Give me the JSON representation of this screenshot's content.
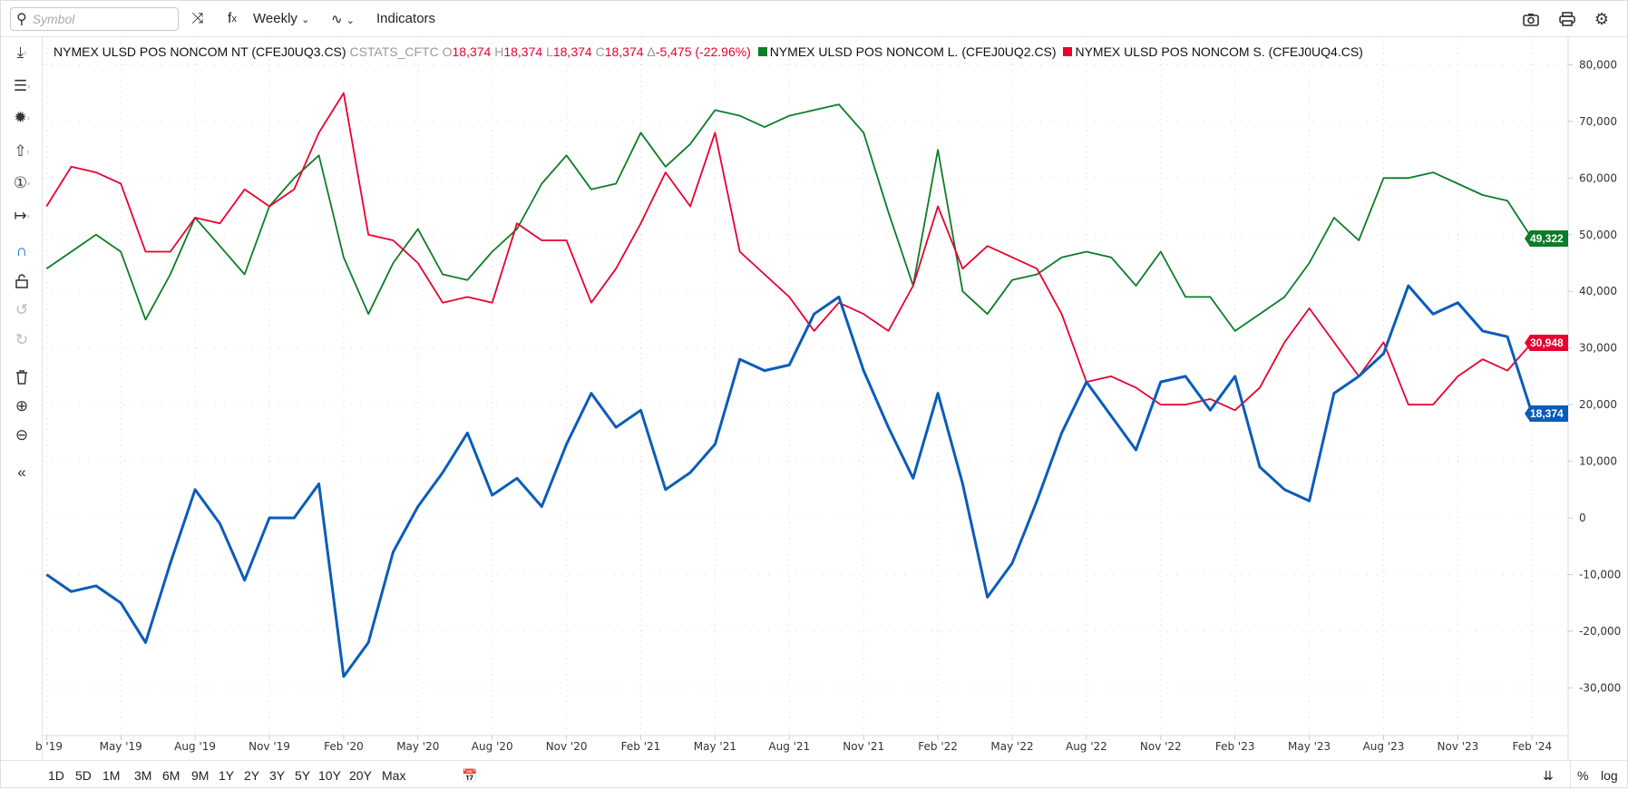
{
  "toolbar": {
    "search_placeholder": "Symbol",
    "interval": "Weekly",
    "indicators": "Indicators",
    "icons": [
      "search-icon",
      "shuffle-icon",
      "fx-icon",
      "line-type-icon",
      "camera-icon",
      "print-icon",
      "gear-icon"
    ]
  },
  "legend": {
    "main_name": "NYMEX ULSD POS NONCOM NT (CFEJ0UQ3.CS)",
    "source": "CSTATS_CFTC",
    "o_label": "O",
    "o": "18,374",
    "h_label": "H",
    "h": "18,374",
    "l_label": "L",
    "l": "18,374",
    "c_label": "C",
    "c": "18,374",
    "change": "Δ",
    "change_val": "-5,475 (-22.96%)",
    "series2": "NYMEX ULSD POS NONCOM L. (CFEJ0UQ2.CS)",
    "series3": "NYMEX ULSD POS NONCOM S. (CFEJ0UQ4.CS)"
  },
  "colors": {
    "net": "#0b5cba",
    "long": "#0a7d27",
    "short": "#e8002f"
  },
  "price_tags": {
    "long": "49,322",
    "short": "30,948",
    "net": "18,374"
  },
  "bottom": {
    "ranges": [
      "1D",
      "5D",
      "1M",
      "3M",
      "6M",
      "9M",
      "1Y",
      "2Y",
      "3Y",
      "5Y",
      "10Y",
      "20Y",
      "Max"
    ],
    "percent": "%",
    "log": "log"
  },
  "chart_data": {
    "type": "line",
    "x_start": "2019-02",
    "x_step": "month",
    "x_ticks": [
      "b '19",
      "May '19",
      "Aug '19",
      "Nov '19",
      "Feb '20",
      "May '20",
      "Aug '20",
      "Nov '20",
      "Feb '21",
      "May '21",
      "Aug '21",
      "Nov '21",
      "Feb '22",
      "May '22",
      "Aug '22",
      "Nov '22",
      "Feb '23",
      "May '23",
      "Aug '23",
      "Nov '23",
      "Feb '24"
    ],
    "x_tick_month_index": [
      0,
      3,
      6,
      9,
      12,
      15,
      18,
      21,
      24,
      27,
      30,
      33,
      36,
      39,
      42,
      45,
      48,
      51,
      54,
      57,
      60
    ],
    "y_ticks": [
      "-30,000",
      "-20,000",
      "-10,000",
      "0",
      "10,000",
      "20,000",
      "30,000",
      "40,000",
      "50,000",
      "60,000",
      "70,000",
      "80,000"
    ],
    "ylim": [
      -30000,
      80000
    ],
    "grid": true,
    "series": [
      {
        "name": "NYMEX ULSD POS NONCOM NT (CFEJ0UQ3.CS)",
        "key": "net",
        "values": [
          -10000,
          -13000,
          -12000,
          -15000,
          -22000,
          -8000,
          5000,
          -1000,
          -11000,
          0,
          0,
          6000,
          -28000,
          -22000,
          -6000,
          2000,
          8000,
          15000,
          4000,
          7000,
          2000,
          13000,
          22000,
          16000,
          19000,
          5000,
          8000,
          13000,
          28000,
          26000,
          27000,
          36000,
          39000,
          26000,
          16000,
          7000,
          22000,
          6000,
          -14000,
          -8000,
          3000,
          15000,
          24000,
          18000,
          12000,
          24000,
          25000,
          19000,
          25000,
          9000,
          5000,
          3000,
          22000,
          25000,
          29000,
          41000,
          36000,
          38000,
          33000,
          32000,
          18374
        ]
      },
      {
        "name": "NYMEX ULSD POS NONCOM L. (CFEJ0UQ2.CS)",
        "key": "long",
        "values": [
          44000,
          47000,
          50000,
          47000,
          35000,
          43000,
          53000,
          48000,
          43000,
          55000,
          60000,
          64000,
          46000,
          36000,
          45000,
          51000,
          43000,
          42000,
          47000,
          51000,
          59000,
          64000,
          58000,
          59000,
          68000,
          62000,
          66000,
          72000,
          71000,
          69000,
          71000,
          72000,
          73000,
          68000,
          54000,
          41000,
          65000,
          40000,
          36000,
          42000,
          43000,
          46000,
          47000,
          46000,
          41000,
          47000,
          39000,
          39000,
          33000,
          36000,
          39000,
          45000,
          53000,
          49000,
          60000,
          60000,
          61000,
          59000,
          57000,
          56000,
          49322
        ]
      },
      {
        "name": "NYMEX ULSD POS NONCOM S. (CFEJ0UQ4.CS)",
        "key": "short",
        "values": [
          55000,
          62000,
          61000,
          59000,
          47000,
          47000,
          53000,
          52000,
          58000,
          55000,
          58000,
          68000,
          75000,
          50000,
          49000,
          45000,
          38000,
          39000,
          38000,
          52000,
          49000,
          49000,
          38000,
          44000,
          52000,
          61000,
          55000,
          68000,
          47000,
          43000,
          39000,
          33000,
          38000,
          36000,
          33000,
          41000,
          55000,
          44000,
          48000,
          46000,
          44000,
          36000,
          24000,
          25000,
          23000,
          20000,
          20000,
          21000,
          19000,
          23000,
          31000,
          37000,
          31000,
          25000,
          31000,
          20000,
          20000,
          25000,
          28000,
          26000,
          30948
        ]
      }
    ]
  }
}
